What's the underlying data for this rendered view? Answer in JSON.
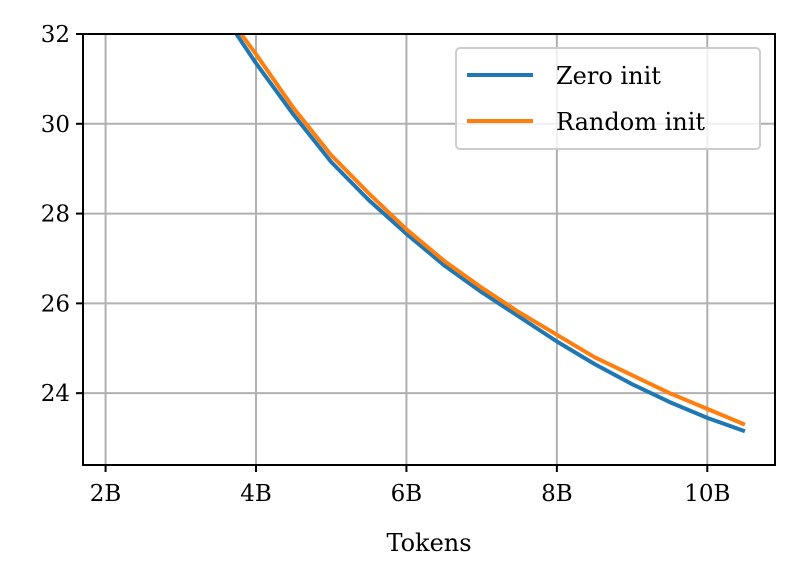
{
  "chart_data": {
    "type": "line",
    "title": "",
    "xlabel": "Tokens",
    "ylabel": "",
    "xlim": [
      1.7,
      10.9
    ],
    "ylim": [
      22.4,
      32.0
    ],
    "x_ticks": [
      2,
      4,
      6,
      8,
      10
    ],
    "x_tick_labels": [
      "2B",
      "4B",
      "6B",
      "8B",
      "10B"
    ],
    "y_ticks": [
      24,
      26,
      28,
      30,
      32
    ],
    "y_tick_labels": [
      "24",
      "26",
      "28",
      "30",
      "32"
    ],
    "grid": true,
    "legend_position": "top-right",
    "series": [
      {
        "name": "Zero init",
        "color": "#1f77b4",
        "x": [
          3.72,
          4.0,
          4.5,
          5.0,
          5.5,
          6.0,
          6.5,
          7.0,
          7.5,
          8.0,
          8.5,
          9.0,
          9.5,
          10.0,
          10.5
        ],
        "y": [
          32.05,
          31.35,
          30.2,
          29.15,
          28.3,
          27.55,
          26.85,
          26.25,
          25.7,
          25.15,
          24.65,
          24.2,
          23.8,
          23.45,
          23.15
        ]
      },
      {
        "name": "Random init",
        "color": "#ff7f0e",
        "x": [
          3.78,
          4.0,
          4.5,
          5.0,
          5.5,
          6.0,
          6.5,
          7.0,
          7.5,
          8.0,
          8.5,
          9.0,
          9.5,
          10.0,
          10.5
        ],
        "y": [
          32.05,
          31.55,
          30.35,
          29.3,
          28.45,
          27.65,
          26.95,
          26.35,
          25.8,
          25.3,
          24.8,
          24.4,
          24.0,
          23.65,
          23.3
        ]
      }
    ]
  }
}
